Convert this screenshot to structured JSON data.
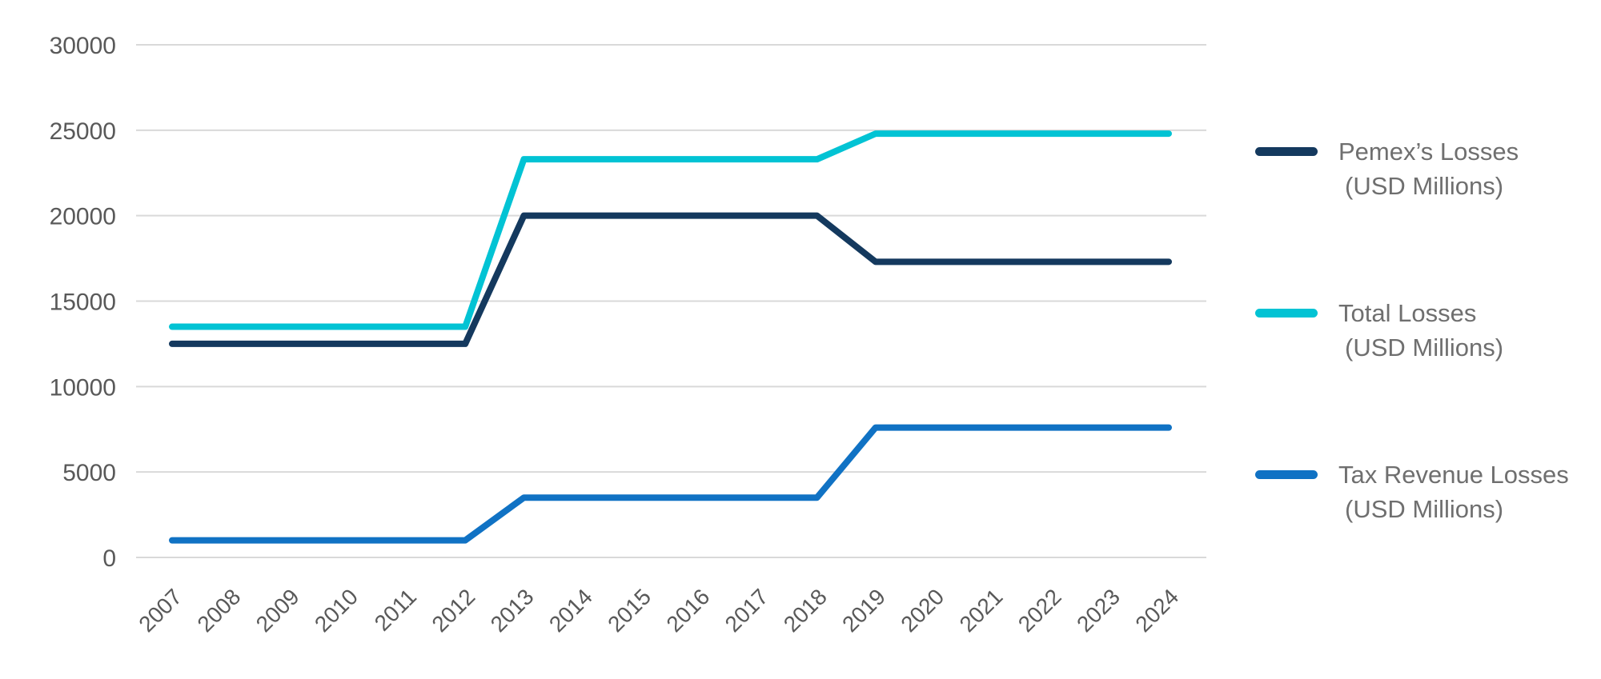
{
  "chart_data": {
    "type": "line",
    "title": "",
    "xlabel": "",
    "ylabel": "",
    "x_labels": [
      "2007",
      "2008",
      "2009",
      "2010",
      "2011",
      "2012",
      "2013",
      "2014",
      "2015",
      "2016",
      "2017",
      "2018",
      "2019",
      "2020",
      "2021",
      "2022",
      "2023",
      "2024"
    ],
    "ylim": [
      0,
      30000
    ],
    "yticks": [
      0,
      5000,
      10000,
      15000,
      20000,
      25000,
      30000
    ],
    "grid": "horizontal-gridlines-only",
    "legend_position": "right",
    "series": [
      {
        "name": "Pemex’s Losses",
        "unit_label": "(USD Millions)",
        "color": "#14395e",
        "values": [
          12500,
          12500,
          12500,
          12500,
          12500,
          12500,
          20000,
          20000,
          20000,
          20000,
          20000,
          20000,
          17300,
          17300,
          17300,
          17300,
          17300,
          17300
        ]
      },
      {
        "name": "Total Losses",
        "unit_label": "(USD Millions)",
        "color": "#02c3d4",
        "values": [
          13500,
          13500,
          13500,
          13500,
          13500,
          13500,
          23300,
          23300,
          23300,
          23300,
          23300,
          23300,
          24800,
          24800,
          24800,
          24800,
          24800,
          24800
        ]
      },
      {
        "name": "Tax Revenue Losses",
        "unit_label": "(USD Millions)",
        "color": "#1072c4",
        "values": [
          1000,
          1000,
          1000,
          1000,
          1000,
          1000,
          3500,
          3500,
          3500,
          3500,
          3500,
          3500,
          7600,
          7600,
          7600,
          7600,
          7600,
          7600
        ]
      }
    ]
  },
  "colors": {
    "background": "#ffffff",
    "grid": "#d9d9d9",
    "tick_label": "#595959",
    "legend_text": "#6f6f6f"
  }
}
